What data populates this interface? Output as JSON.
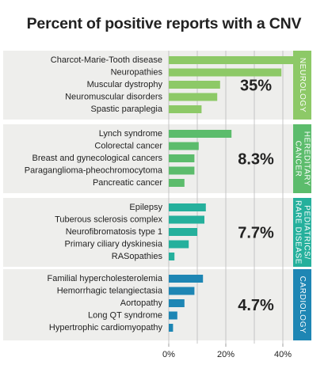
{
  "title": "Percent of positive reports with a CNV",
  "chart_data": {
    "type": "bar",
    "orientation": "horizontal",
    "title": "Percent of positive reports with a CNV",
    "xlim": [
      0,
      50
    ],
    "xticks": [
      0,
      20,
      40
    ],
    "xtick_labels": [
      "0%",
      "20%",
      "40%"
    ],
    "grid": true,
    "groups": [
      {
        "name": "NEUROLOGY",
        "label_lines": [
          "NEUROLOGY"
        ],
        "summary": "35%",
        "color": "#8dc967",
        "tab_color": "#8dc967",
        "categories": [
          "Charcot-Marie-Tooth disease",
          "Neuropathies",
          "Muscular dystrophy",
          "Neuromuscular disorders",
          "Spastic paraplegia"
        ],
        "values": [
          46,
          39.5,
          18,
          17,
          11.5
        ]
      },
      {
        "name": "HEREDITARY CANCER",
        "label_lines": [
          "HEREDITARY",
          "CANCER"
        ],
        "summary": "8.3%",
        "color": "#5cbc6c",
        "tab_color": "#5cbc6c",
        "categories": [
          "Lynch syndrome",
          "Colorectal cancer",
          "Breast and gynecological cancers",
          "Paraganglioma-pheochromocytoma",
          "Pancreatic cancer"
        ],
        "values": [
          22,
          10.5,
          9,
          9,
          5.5
        ]
      },
      {
        "name": "PEDIATRICS/RARE DISEASE",
        "label_lines": [
          "PEDIATRICS/",
          "RARE DISEASE"
        ],
        "summary": "7.7%",
        "color": "#25b09c",
        "tab_color": "#25b09c",
        "categories": [
          "Epilepsy",
          "Tuberous sclerosis complex",
          "Neurofibromatosis type 1",
          "Primary ciliary dyskinesia",
          "RASopathies"
        ],
        "values": [
          13,
          12.5,
          10,
          7,
          2
        ]
      },
      {
        "name": "CARDIOLOGY",
        "label_lines": [
          "CARDIOLOGY"
        ],
        "summary": "4.7%",
        "color": "#1e86b4",
        "tab_color": "#1e86b4",
        "categories": [
          "Familial hypercholesterolemia",
          "Hemorrhagic telangiectasia",
          "Aortopathy",
          "Long QT syndrome",
          "Hypertrophic cardiomyopathy"
        ],
        "values": [
          12,
          9,
          5.5,
          3,
          1.5
        ]
      }
    ]
  }
}
